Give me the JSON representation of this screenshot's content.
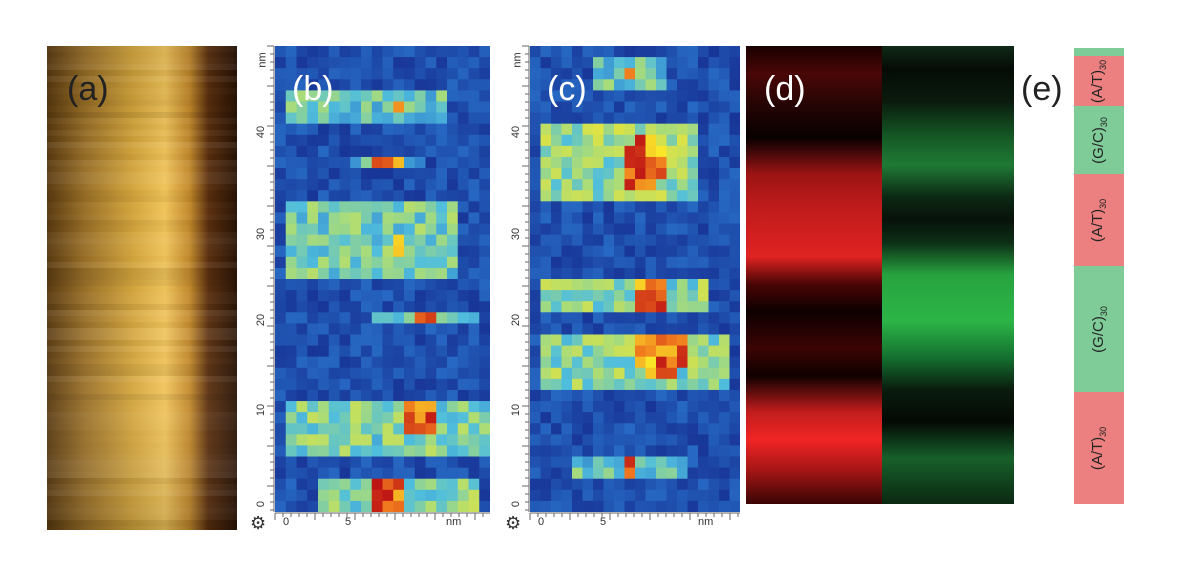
{
  "panels": {
    "a": {
      "label": "(a)"
    },
    "b": {
      "label": "(b)",
      "y_ticks": [
        "0",
        "10",
        "20",
        "30",
        "40"
      ],
      "y_unit": "nm",
      "x_ticks": [
        "0",
        "5"
      ],
      "x_unit": "nm"
    },
    "c": {
      "label": "(c)",
      "y_ticks": [
        "0",
        "10",
        "20",
        "30",
        "40"
      ],
      "y_unit": "nm",
      "x_ticks": [
        "0",
        "5"
      ],
      "x_unit": "nm"
    },
    "d": {
      "label": "(d)"
    },
    "e": {
      "label": "(e)",
      "segments": [
        {
          "base": "(A/T)",
          "sub": "30",
          "color": "#ec7f7f"
        },
        {
          "base": "(G/C)",
          "sub": "30",
          "color": "#7fcc99"
        },
        {
          "base": "(A/T)",
          "sub": "30",
          "color": "#ec7f7f"
        },
        {
          "base": "(G/C)",
          "sub": "30",
          "color": "#7fcc99"
        },
        {
          "base": "(A/T)",
          "sub": "30",
          "color": "#ec7f7f"
        }
      ]
    }
  },
  "colors": {
    "at": "#ec7f7f",
    "gc": "#7fcc99"
  }
}
